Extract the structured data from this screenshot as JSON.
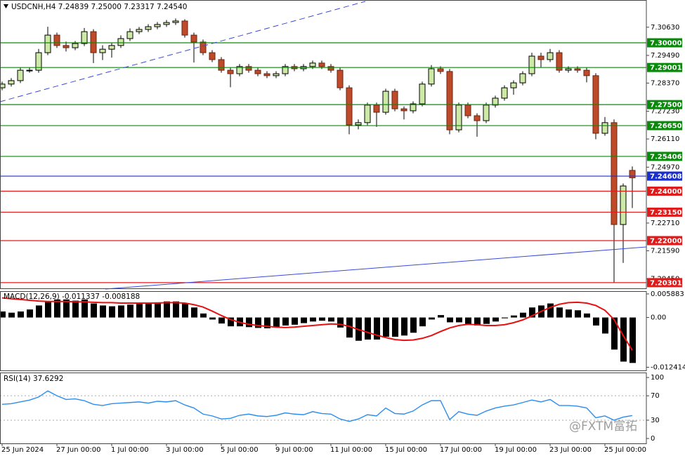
{
  "chart_data": [
    {
      "type": "candlestick",
      "title": "USDCNH,H4  7.24839 7.25000 7.23317 7.24540",
      "categories": [
        "25 Jun 2024",
        null,
        null,
        null,
        null,
        null,
        "27 Jun 00:00",
        null,
        null,
        null,
        null,
        null,
        "1 Jul 00:00",
        null,
        null,
        null,
        null,
        null,
        "3 Jul 00:00",
        null,
        null,
        null,
        null,
        null,
        "5 Jul 00:00",
        null,
        null,
        null,
        null,
        null,
        "9 Jul 00:00",
        null,
        null,
        null,
        null,
        null,
        "11 Jul 00:00",
        null,
        null,
        null,
        null,
        null,
        "15 Jul 00:00",
        null,
        null,
        null,
        null,
        null,
        "17 Jul 00:00",
        null,
        null,
        null,
        null,
        null,
        "19 Jul 00:00",
        null,
        null,
        null,
        null,
        null,
        "23 Jul 00:00",
        null,
        null,
        null,
        null,
        null,
        "25 Jul 00:00",
        null,
        null,
        null
      ],
      "open": [
        7.2818,
        7.2833,
        7.2847,
        7.2889,
        7.2889,
        7.296,
        7.3031,
        7.2989,
        7.298,
        7.2997,
        7.3045,
        7.296,
        7.2974,
        7.2989,
        7.3017,
        7.3045,
        7.3054,
        7.3065,
        7.3074,
        7.3082,
        7.3088,
        7.3031,
        7.3003,
        7.296,
        7.2932,
        7.2889,
        7.2875,
        7.2904,
        7.2889,
        7.2875,
        7.2867,
        7.2875,
        7.2904,
        7.2895,
        7.2904,
        7.2918,
        7.2904,
        7.2889,
        7.2818,
        7.2668,
        7.2677,
        7.2748,
        7.2719,
        7.2804,
        7.2733,
        7.2725,
        7.2753,
        7.2833,
        7.2895,
        7.2884,
        7.2648,
        7.2748,
        7.2705,
        7.2685,
        7.2748,
        7.2776,
        7.2818,
        7.2838,
        7.2875,
        7.2946,
        7.2932,
        7.296,
        7.2889,
        7.2895,
        7.2889,
        7.2867,
        7.2634,
        7.2677,
        7.2265,
        7.2484
      ],
      "high": [
        7.2843,
        7.2857,
        7.2899,
        7.2899,
        7.2975,
        7.3065,
        7.3041,
        7.3005,
        7.3007,
        7.306,
        7.3055,
        7.299,
        7.3,
        7.303,
        7.3058,
        7.3064,
        7.3075,
        7.3084,
        7.3092,
        7.3098,
        7.3095,
        7.3041,
        7.3013,
        7.297,
        7.2942,
        7.2899,
        7.2914,
        7.2914,
        7.2899,
        7.2885,
        7.2885,
        7.2914,
        7.2914,
        7.2914,
        7.2928,
        7.2928,
        7.2914,
        7.2899,
        7.2828,
        7.269,
        7.2758,
        7.2758,
        7.2814,
        7.2814,
        7.2743,
        7.2763,
        7.2843,
        7.291,
        7.2905,
        7.2894,
        7.2758,
        7.2758,
        7.2715,
        7.2758,
        7.2786,
        7.2828,
        7.2848,
        7.2885,
        7.296,
        7.296,
        7.2975,
        7.297,
        7.2905,
        7.2905,
        7.2899,
        7.2877,
        7.27,
        7.269,
        7.2431,
        7.25
      ],
      "low": [
        7.2808,
        7.2823,
        7.2837,
        7.2879,
        7.2879,
        7.295,
        7.2979,
        7.2965,
        7.297,
        7.2987,
        7.2918,
        7.293,
        7.294,
        7.2979,
        7.3007,
        7.3035,
        7.3044,
        7.3055,
        7.3064,
        7.3072,
        7.3021,
        7.292,
        7.295,
        7.2922,
        7.2879,
        7.282,
        7.2865,
        7.2879,
        7.2865,
        7.2857,
        7.2857,
        7.2865,
        7.2885,
        7.2885,
        7.2894,
        7.2894,
        7.2879,
        7.2808,
        7.263,
        7.265,
        7.2667,
        7.266,
        7.2709,
        7.2723,
        7.269,
        7.2715,
        7.2743,
        7.2823,
        7.2874,
        7.263,
        7.2638,
        7.2695,
        7.262,
        7.2675,
        7.2738,
        7.2766,
        7.279,
        7.2828,
        7.2865,
        7.29,
        7.2922,
        7.2879,
        7.2879,
        7.2879,
        7.284,
        7.261,
        7.2624,
        7.203,
        7.211,
        7.2332
      ],
      "close": [
        7.2833,
        7.2847,
        7.2889,
        7.2889,
        7.296,
        7.3031,
        7.2989,
        7.298,
        7.2997,
        7.3045,
        7.296,
        7.2974,
        7.2989,
        7.3017,
        7.3045,
        7.3054,
        7.3065,
        7.3074,
        7.3082,
        7.3088,
        7.3031,
        7.3003,
        7.296,
        7.2932,
        7.2889,
        7.2875,
        7.2904,
        7.2889,
        7.2875,
        7.2867,
        7.2875,
        7.2904,
        7.2895,
        7.2904,
        7.2918,
        7.2904,
        7.2889,
        7.2818,
        7.2668,
        7.2677,
        7.2748,
        7.2719,
        7.2804,
        7.2733,
        7.2725,
        7.2753,
        7.2833,
        7.2895,
        7.2884,
        7.2648,
        7.2748,
        7.2705,
        7.2685,
        7.2748,
        7.2776,
        7.2818,
        7.2838,
        7.2875,
        7.2946,
        7.2932,
        7.296,
        7.2889,
        7.2895,
        7.2889,
        7.2867,
        7.2634,
        7.2677,
        7.2265,
        7.2421,
        7.2454
      ],
      "up_color": "#cde9a6",
      "down_color": "#bf4a2a",
      "ylim": [
        7.2007,
        7.3173
      ],
      "yticks": [
        {
          "value": 7.3063,
          "label": "7.30630"
        },
        {
          "value": 7.2949,
          "label": "7.29490"
        },
        {
          "value": 7.2837,
          "label": "7.28370"
        },
        {
          "value": 7.2723,
          "label": "7.27230"
        },
        {
          "value": 7.2611,
          "label": "7.26110"
        },
        {
          "value": 7.2497,
          "label": "7.24970"
        },
        {
          "value": 7.2271,
          "label": "7.22710"
        },
        {
          "value": 7.2159,
          "label": "7.21590"
        },
        {
          "value": 7.2045,
          "label": "7.20450"
        }
      ],
      "levels": [
        {
          "value": 7.3,
          "label": "7.30000",
          "color": "#0a8a0a"
        },
        {
          "value": 7.29001,
          "label": "7.29001",
          "color": "#0a8a0a"
        },
        {
          "value": 7.275,
          "label": "7.27500",
          "color": "#0a8a0a"
        },
        {
          "value": 7.2665,
          "label": "7.26650",
          "color": "#0a8a0a"
        },
        {
          "value": 7.25406,
          "label": "7.25406",
          "color": "#0a8a0a"
        },
        {
          "value": 7.24608,
          "label": "7.24608",
          "color": "#1a2fd0"
        },
        {
          "value": 7.24,
          "label": "7.24000",
          "color": "#e01b1b"
        },
        {
          "value": 7.2315,
          "label": "7.23150",
          "color": "#e01b1b"
        },
        {
          "value": 7.22,
          "label": "7.22000",
          "color": "#e01b1b"
        },
        {
          "value": 7.20301,
          "label": "7.20301",
          "color": "#e01b1b"
        }
      ]
    },
    {
      "type": "macd",
      "title": "MACD(12,26,9) -0.011337 -0.008188",
      "series": [
        {
          "color": "#000000",
          "values": [
            0.0015,
            0.0012,
            0.0015,
            0.002,
            0.003,
            0.004,
            0.0045,
            0.0045,
            0.0042,
            0.0045,
            0.0035,
            0.003,
            0.0028,
            0.003,
            0.0032,
            0.0034,
            0.0036,
            0.0038,
            0.004,
            0.004,
            0.0035,
            0.0025,
            0.001,
            -0.0005,
            -0.0015,
            -0.0022,
            -0.0022,
            -0.0024,
            -0.0026,
            -0.0027,
            -0.0025,
            -0.002,
            -0.0018,
            -0.0014,
            -0.001,
            -0.0008,
            -0.001,
            -0.0025,
            -0.005,
            -0.0058,
            -0.0055,
            -0.0055,
            -0.0048,
            -0.0048,
            -0.0045,
            -0.0038,
            -0.0022,
            -0.0005,
            0.0006,
            -0.0012,
            -0.0012,
            -0.0016,
            -0.002,
            -0.0016,
            -0.001,
            -0.0002,
            0.0005,
            0.0012,
            0.0025,
            0.003,
            0.0035,
            0.0025,
            0.002,
            0.0018,
            0.001,
            -0.002,
            -0.004,
            -0.008,
            -0.011,
            -0.011337
          ]
        },
        {
          "color": "#e81010",
          "values": [
            0.0049,
            0.0047,
            0.0045,
            0.0043,
            0.0041,
            0.004,
            0.004,
            0.004,
            0.0039,
            0.0039,
            0.0038,
            0.0037,
            0.0037,
            0.0036,
            0.0036,
            0.0036,
            0.0036,
            0.0036,
            0.0037,
            0.0037,
            0.0036,
            0.0032,
            0.0026,
            0.0016,
            0.0005,
            -0.0005,
            -0.0012,
            -0.0017,
            -0.002,
            -0.0022,
            -0.0024,
            -0.0025,
            -0.0024,
            -0.0022,
            -0.002,
            -0.0018,
            -0.0016,
            -0.0017,
            -0.0022,
            -0.003,
            -0.0037,
            -0.0044,
            -0.005,
            -0.0055,
            -0.0057,
            -0.0056,
            -0.0052,
            -0.0045,
            -0.0035,
            -0.0026,
            -0.002,
            -0.0017,
            -0.0018,
            -0.002,
            -0.002,
            -0.0018,
            -0.0013,
            -0.0006,
            0.0004,
            0.0015,
            0.0025,
            0.0033,
            0.0037,
            0.0038,
            0.0036,
            0.003,
            0.0018,
            -0.0005,
            -0.0045,
            -0.008188
          ]
        }
      ],
      "ylim": [
        -0.0132,
        0.0064
      ],
      "yticks": [
        0.005883,
        {
          "value": 0,
          "label": "0.00"
        },
        -0.012414
      ]
    },
    {
      "type": "line",
      "title": "RSI(14) 37.6292",
      "color": "#2a8df0",
      "values": [
        56,
        57,
        60,
        63,
        68,
        78,
        70,
        64,
        65,
        62,
        56,
        54,
        57,
        58,
        59,
        60,
        58,
        61,
        60,
        62,
        55,
        50,
        40,
        37,
        32,
        33,
        38,
        40,
        37,
        36,
        38,
        42,
        40,
        39,
        44,
        41,
        40,
        32,
        28,
        32,
        39,
        37,
        50,
        41,
        40,
        45,
        55,
        62,
        62,
        31,
        44,
        40,
        38,
        45,
        50,
        53,
        55,
        59,
        63,
        60,
        64,
        54,
        54,
        53,
        50,
        34,
        37,
        30,
        35,
        37.6292
      ],
      "ylim": [
        -8,
        107
      ],
      "yticks": [
        100,
        70,
        30,
        0
      ],
      "levels": [
        70,
        30
      ],
      "watermark": "@FXTM富拓"
    }
  ]
}
